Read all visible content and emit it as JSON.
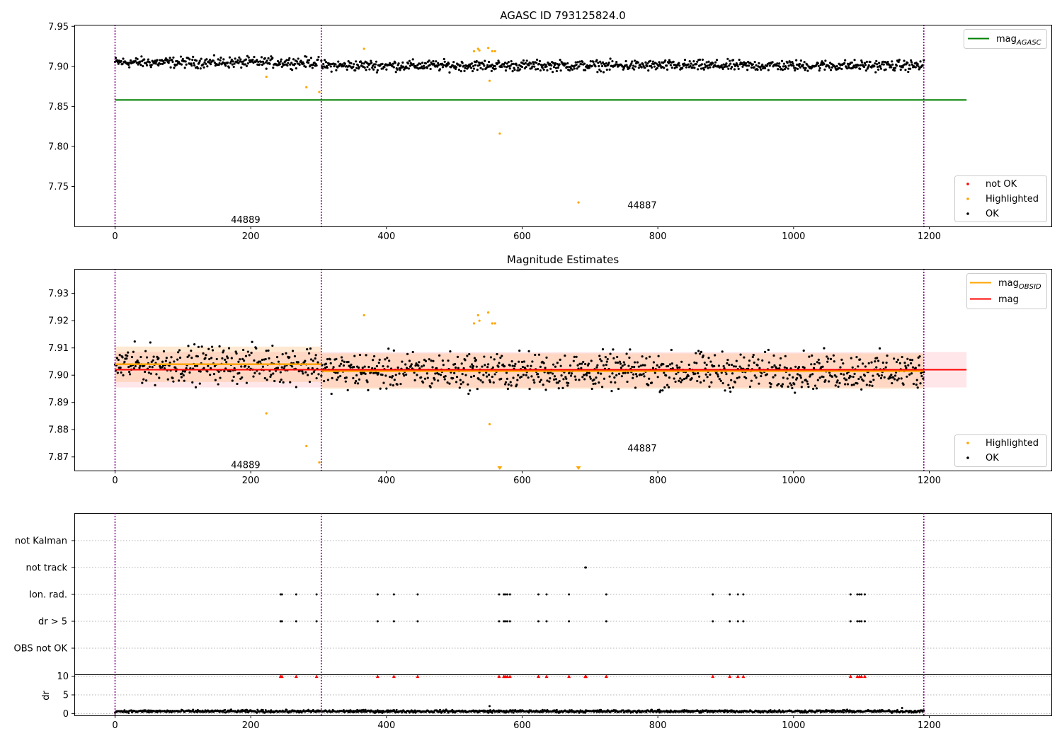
{
  "colors": {
    "ok": "#000000",
    "highlighted": "#ffa500",
    "not_ok": "#ff0000",
    "mag_agasc": "#008000",
    "mag_obsid": "#ffa500",
    "mag": "#ff0000",
    "obsid_divider": "#800080"
  },
  "chart_data": [
    {
      "type": "scatter",
      "title": "AGASC ID 793125824.0",
      "xlim": [
        -60,
        1380
      ],
      "ylim": [
        7.7,
        7.952
      ],
      "xticks": [
        0,
        200,
        400,
        600,
        800,
        1000,
        1200
      ],
      "yticks": [
        7.75,
        7.8,
        7.85,
        7.9,
        7.95
      ],
      "x_tick_labels": [
        "0",
        "200",
        "400",
        "600",
        "800",
        "1000",
        "1200"
      ],
      "y_tick_labels": [
        "7.75",
        "7.80",
        "7.85",
        "7.90",
        "7.95"
      ],
      "obsid_boundaries": [
        0,
        304,
        1192
      ],
      "obsid_labels": [
        {
          "text": "44889",
          "x": 150,
          "y": 7.708
        },
        {
          "text": "44887",
          "x": 750,
          "y": 7.726
        }
      ],
      "mag_agasc": {
        "value": 7.858,
        "x_range": [
          0,
          1255
        ],
        "label": "mag",
        "label_sub": "AGASC"
      },
      "ok_series": {
        "name": "OK",
        "segments": [
          {
            "x_start": 0,
            "x_end": 300,
            "center": 7.905,
            "spread": 0.006
          },
          {
            "x_start": 304,
            "x_end": 1192,
            "center": 7.901,
            "spread": 0.006
          }
        ]
      },
      "highlighted_points": {
        "name": "Highlighted",
        "x": [
          223,
          282,
          301,
          367,
          529,
          535,
          537,
          550,
          552,
          556,
          560,
          567,
          683
        ],
        "y": [
          7.887,
          7.874,
          7.868,
          7.922,
          7.919,
          7.922,
          7.92,
          7.923,
          7.882,
          7.919,
          7.919,
          7.816,
          7.73
        ]
      },
      "legend_upper": {
        "location": "upper-right",
        "entries": [
          "mag"
        ]
      },
      "legend_lower": {
        "location": "lower-right",
        "entries": [
          "not OK",
          "Highlighted",
          "OK"
        ]
      }
    },
    {
      "type": "scatter",
      "title": "Magnitude Estimates",
      "xlim": [
        -60,
        1380
      ],
      "ylim": [
        7.865,
        7.939
      ],
      "xticks": [
        0,
        200,
        400,
        600,
        800,
        1000,
        1200
      ],
      "yticks": [
        7.87,
        7.88,
        7.89,
        7.9,
        7.91,
        7.92,
        7.93
      ],
      "x_tick_labels": [
        "0",
        "200",
        "400",
        "600",
        "800",
        "1000",
        "1200"
      ],
      "y_tick_labels": [
        "7.87",
        "7.88",
        "7.89",
        "7.90",
        "7.91",
        "7.92",
        "7.93"
      ],
      "obsid_boundaries": [
        0,
        304,
        1192
      ],
      "obsid_labels": [
        {
          "text": "44889",
          "x": 150,
          "y": 7.867
        },
        {
          "text": "44887",
          "x": 750,
          "y": 7.873
        }
      ],
      "mag": {
        "value": 7.902,
        "band": [
          7.8955,
          7.9085
        ],
        "x_range": [
          0,
          1255
        ],
        "label": "mag"
      },
      "mag_obsid": [
        {
          "x_range": [
            0,
            304
          ],
          "value": 7.904,
          "band": [
            7.8975,
            7.9105
          ]
        },
        {
          "x_range": [
            304,
            1192
          ],
          "value": 7.9015,
          "band": [
            7.895,
            7.908
          ]
        }
      ],
      "mag_obsid_label": {
        "label": "mag",
        "label_sub": "OBSID"
      },
      "ok_series": {
        "name": "OK",
        "segments": [
          {
            "x_start": 0,
            "x_end": 300,
            "center": 7.904,
            "spread": 0.006
          },
          {
            "x_start": 304,
            "x_end": 1192,
            "center": 7.9015,
            "spread": 0.006
          }
        ]
      },
      "highlighted_points": {
        "name": "Highlighted",
        "x": [
          223,
          282,
          301,
          367,
          529,
          535,
          537,
          550,
          552,
          556,
          560
        ],
        "y": [
          7.886,
          7.874,
          7.868,
          7.922,
          7.919,
          7.922,
          7.92,
          7.923,
          7.882,
          7.919,
          7.919
        ]
      },
      "out_of_range_markers": {
        "x": [
          567,
          683
        ]
      },
      "legend_upper": {
        "location": "upper-right",
        "entries": [
          "mag",
          "mag"
        ]
      },
      "legend_lower": {
        "location": "lower-right",
        "entries": [
          "Highlighted",
          "OK"
        ]
      }
    },
    {
      "type": "scatter",
      "title": "",
      "xlim": [
        -60,
        1380
      ],
      "categories": [
        "not Kalman",
        "not track",
        "Ion. rad.",
        "dr > 5",
        "OBS not OK"
      ],
      "flags": {
        "not Kalman": [],
        "not track": [
          693,
          694
        ],
        "Ion. rad.": [
          244,
          246,
          267,
          297,
          387,
          411,
          446,
          566,
          573,
          575,
          578,
          582,
          624,
          636,
          669,
          724,
          881,
          906,
          918,
          926,
          1084,
          1094,
          1097,
          1100,
          1105
        ],
        "dr > 5": [
          244,
          246,
          267,
          297,
          387,
          411,
          446,
          566,
          573,
          575,
          578,
          582,
          624,
          636,
          669,
          724,
          881,
          906,
          918,
          926,
          1084,
          1094,
          1097,
          1100,
          1105
        ],
        "OBS not OK": []
      },
      "obsid_boundaries": [
        0,
        304,
        1192
      ]
    },
    {
      "type": "scatter",
      "title": "",
      "ylabel": "dr",
      "xlim": [
        -60,
        1380
      ],
      "ylim": [
        -0.5,
        10.5
      ],
      "xticks": [
        0,
        200,
        400,
        600,
        800,
        1000,
        1200
      ],
      "yticks": [
        0,
        5,
        10
      ],
      "x_tick_labels": [
        "0",
        "200",
        "400",
        "600",
        "800",
        "1000",
        "1200"
      ],
      "y_tick_labels": [
        "0",
        "5",
        "10"
      ],
      "obsid_boundaries": [
        0,
        304,
        1192
      ],
      "dr_baseline": {
        "x_start": 0,
        "x_end": 1192,
        "center": 0.6,
        "spread": 0.35
      },
      "dr_outliers": {
        "x": [
          552,
          1160
        ],
        "y": [
          2.0,
          1.5
        ]
      },
      "dr_clipped_markers": {
        "y": 10,
        "x": [
          244,
          246,
          267,
          297,
          387,
          411,
          446,
          566,
          573,
          575,
          578,
          582,
          624,
          636,
          669,
          693,
          694,
          724,
          881,
          906,
          918,
          926,
          1084,
          1094,
          1097,
          1100,
          1105
        ]
      }
    }
  ]
}
